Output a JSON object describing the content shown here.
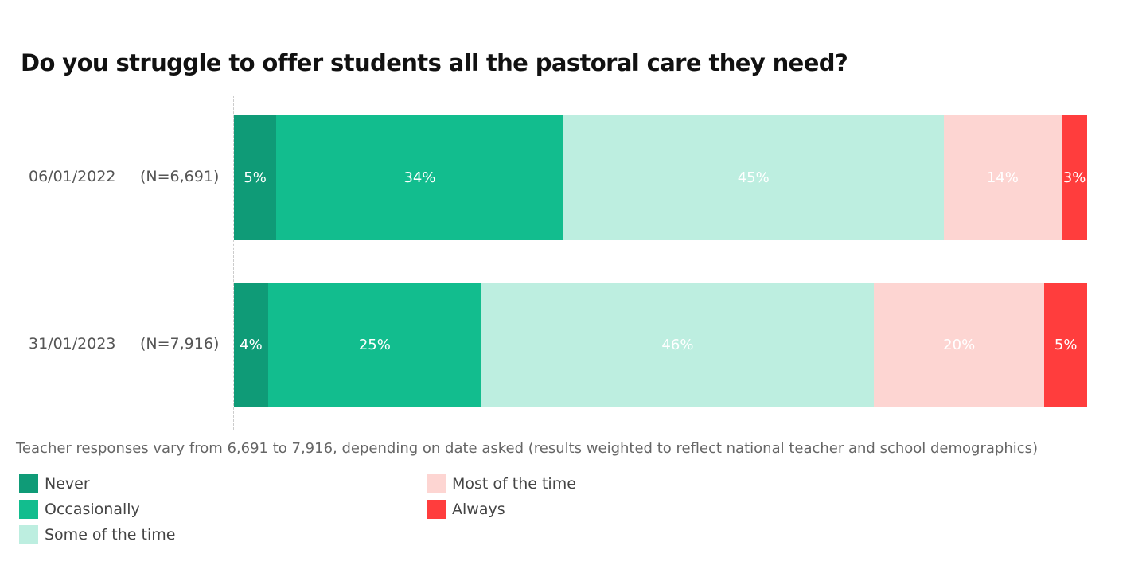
{
  "chart_data": {
    "type": "bar",
    "orientation": "horizontal-stacked-100",
    "title": "Do you struggle to offer students all the pastoral care they need?",
    "categories": [
      "06/01/2022",
      "31/01/2023"
    ],
    "sample_sizes": [
      "(N=6,691)",
      "(N=7,916)"
    ],
    "series": [
      {
        "name": "Never",
        "color": "#0f9b77",
        "values": [
          5,
          4
        ]
      },
      {
        "name": "Occasionally",
        "color": "#12bd8e",
        "values": [
          34,
          25
        ]
      },
      {
        "name": "Some of the time",
        "color": "#bdeee0",
        "values": [
          45,
          46
        ]
      },
      {
        "name": "Most of the time",
        "color": "#fdd5d2",
        "values": [
          14,
          20
        ]
      },
      {
        "name": "Always",
        "color": "#ff3d3d",
        "values": [
          3,
          5
        ]
      }
    ],
    "value_suffix": "%",
    "note": "Teacher responses vary from 6,691 to 7,916, depending on date asked (results weighted to reflect national teacher and school demographics)",
    "legend_placement": "bottom-left"
  }
}
